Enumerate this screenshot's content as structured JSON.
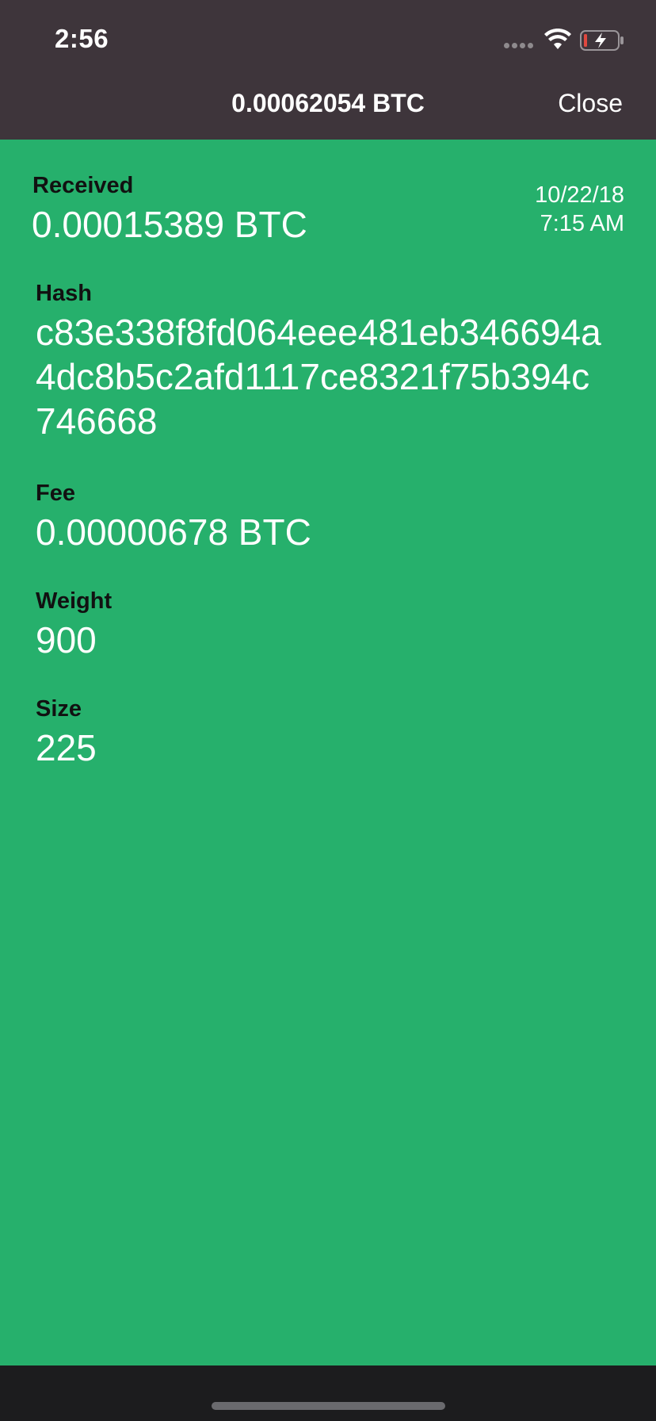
{
  "status_bar": {
    "time": "2:56"
  },
  "nav": {
    "title": "0.00062054 BTC",
    "close_label": "Close"
  },
  "transaction": {
    "direction_label": "Received",
    "amount": "0.00015389 BTC",
    "date": "10/22/18",
    "time": "7:15 AM",
    "hash_label": "Hash",
    "hash_value": "c83e338f8fd064eee481eb346694a4dc8b5c2afd1117ce8321f75b394c746668",
    "fee_label": "Fee",
    "fee_value": "0.00000678 BTC",
    "weight_label": "Weight",
    "weight_value": "900",
    "size_label": "Size",
    "size_value": "225"
  },
  "colors": {
    "background": "#26b06c",
    "topbar": "#3e353b"
  }
}
